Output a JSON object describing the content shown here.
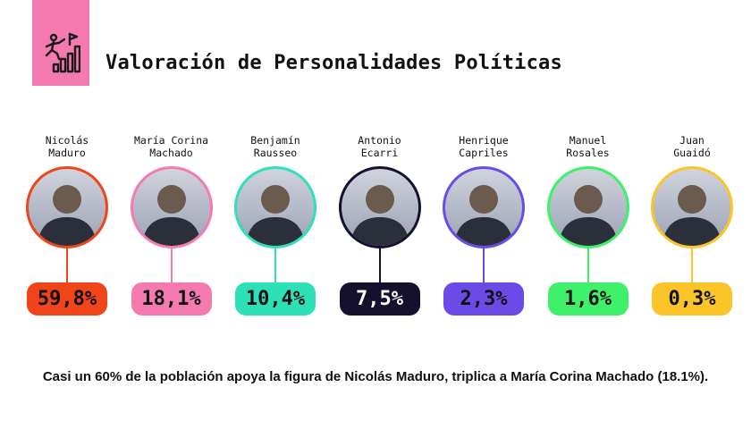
{
  "header": {
    "title": "Valoración de Personalidades Políticas",
    "icon": "climbing-person-bar-chart-flag-icon",
    "badge_color": "#f47ab0"
  },
  "chart_data": {
    "type": "bar",
    "unit": "%",
    "categories": [
      "Nicolás Maduro",
      "María Corina Machado",
      "Benjamín Rausseo",
      "Antonio Ecarri",
      "Henrique Capriles",
      "Manuel Rosales",
      "Juan Guaidó"
    ],
    "values": [
      59.8,
      18.1,
      10.4,
      7.5,
      2.3,
      1.6,
      0.3
    ],
    "items": [
      {
        "line1": "Nicolás",
        "line2": "Maduro",
        "value_label": "59,8%",
        "color": "#f0441a",
        "text_color": "#111111"
      },
      {
        "line1": "María Corina",
        "line2": "Machado",
        "value_label": "18,1%",
        "color": "#f47ab0",
        "text_color": "#111111"
      },
      {
        "line1": "Benjamín",
        "line2": "Rausseo",
        "value_label": "10,4%",
        "color": "#2de0b8",
        "text_color": "#111111"
      },
      {
        "line1": "Antonio",
        "line2": "Ecarri",
        "value_label": "7,5%",
        "color": "#14102e",
        "text_color": "#ffffff"
      },
      {
        "line1": "Henrique",
        "line2": "Capriles",
        "value_label": "2,3%",
        "color": "#6a4be8",
        "text_color": "#111111"
      },
      {
        "line1": "Manuel",
        "line2": "Rosales",
        "value_label": "1,6%",
        "color": "#3ef06a",
        "text_color": "#111111"
      },
      {
        "line1": "Juan",
        "line2": "Guaidó",
        "value_label": "0,3%",
        "color": "#fbc52a",
        "text_color": "#111111"
      }
    ]
  },
  "footer": {
    "text": "Casi un 60% de la población apoya la figura de Nicolás Maduro, triplica a María Corina Machado (18.1%)."
  }
}
